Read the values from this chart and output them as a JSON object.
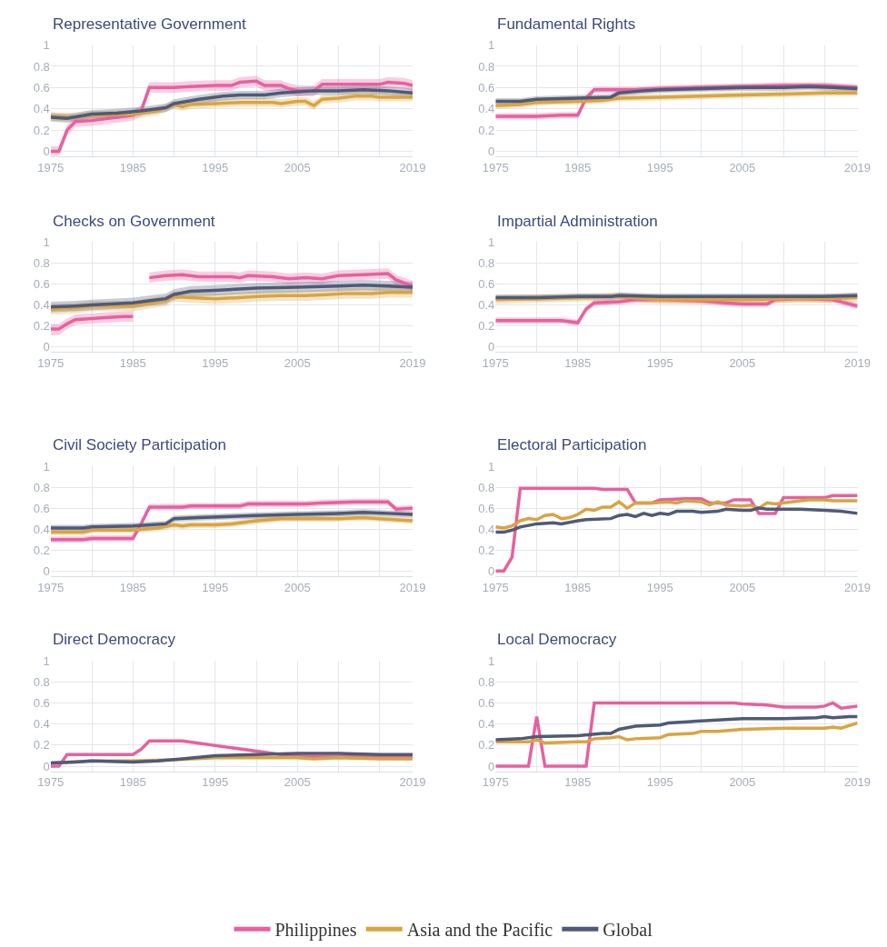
{
  "chart_data": [
    {
      "type": "line",
      "title": "Representative Government",
      "xlim": [
        1975,
        2019
      ],
      "ylim": [
        -0.05,
        1
      ],
      "xticks": [
        1975,
        {
          "value": 1980,
          "label": null
        },
        1985,
        {
          "value": 1990,
          "label": null
        },
        1995,
        {
          "value": 2000,
          "label": null
        },
        2005,
        {
          "value": 2010,
          "label": null
        },
        {
          "value": 2015,
          "label": null
        },
        2019
      ],
      "yticks": [
        0,
        0.2,
        0.4,
        0.6,
        0.8,
        1
      ],
      "grid": true,
      "legend": "bottom",
      "series": [
        {
          "name": "Philippines",
          "color": "#e8609f",
          "x": [
            1975,
            1976,
            1977,
            1978,
            1980,
            1982,
            1985,
            1986,
            1987,
            1990,
            1992,
            1995,
            1997,
            1998,
            2000,
            2001,
            2003,
            2004,
            2005,
            2007,
            2008,
            2011,
            2015,
            2016,
            2018,
            2019
          ],
          "values": [
            0,
            0,
            0.2,
            0.28,
            0.29,
            0.31,
            0.34,
            0.38,
            0.6,
            0.6,
            0.61,
            0.62,
            0.62,
            0.65,
            0.66,
            0.62,
            0.62,
            0.59,
            0.57,
            0.57,
            0.63,
            0.63,
            0.63,
            0.65,
            0.64,
            0.62
          ],
          "lower": [
            -0.04,
            -0.04,
            0.15,
            0.23,
            0.24,
            0.26,
            0.29,
            0.33,
            0.55,
            0.55,
            0.56,
            0.57,
            0.57,
            0.6,
            0.61,
            0.57,
            0.57,
            0.54,
            0.52,
            0.52,
            0.58,
            0.58,
            0.58,
            0.6,
            0.59,
            0.57
          ],
          "upper": [
            0.05,
            0.05,
            0.25,
            0.33,
            0.34,
            0.36,
            0.39,
            0.43,
            0.65,
            0.65,
            0.66,
            0.67,
            0.67,
            0.7,
            0.71,
            0.67,
            0.67,
            0.64,
            0.62,
            0.62,
            0.68,
            0.68,
            0.68,
            0.7,
            0.69,
            0.67
          ]
        },
        {
          "name": "Asia and the Pacific",
          "color": "#d9a441",
          "x": [
            1975,
            1978,
            1980,
            1985,
            1988,
            1990,
            1991,
            1992,
            1995,
            1998,
            2000,
            2002,
            2003,
            2005,
            2006,
            2007,
            2008,
            2010,
            2012,
            2014,
            2015,
            2019
          ],
          "values": [
            0.33,
            0.32,
            0.34,
            0.35,
            0.38,
            0.44,
            0.42,
            0.44,
            0.45,
            0.46,
            0.46,
            0.46,
            0.45,
            0.47,
            0.47,
            0.43,
            0.49,
            0.5,
            0.52,
            0.52,
            0.51,
            0.51
          ],
          "lower": [
            0.29,
            0.28,
            0.3,
            0.31,
            0.34,
            0.4,
            0.38,
            0.4,
            0.41,
            0.42,
            0.42,
            0.42,
            0.41,
            0.43,
            0.43,
            0.39,
            0.45,
            0.46,
            0.48,
            0.48,
            0.47,
            0.47
          ],
          "upper": [
            0.37,
            0.36,
            0.38,
            0.39,
            0.42,
            0.48,
            0.46,
            0.48,
            0.49,
            0.5,
            0.5,
            0.5,
            0.49,
            0.51,
            0.51,
            0.47,
            0.53,
            0.54,
            0.56,
            0.56,
            0.55,
            0.55
          ]
        },
        {
          "name": "Global",
          "color": "#4f5a78",
          "x": [
            1975,
            1977,
            1980,
            1983,
            1986,
            1989,
            1990,
            1993,
            1996,
            1998,
            2001,
            2003,
            2005,
            2007,
            2010,
            2013,
            2016,
            2019
          ],
          "values": [
            0.32,
            0.31,
            0.35,
            0.36,
            0.38,
            0.41,
            0.45,
            0.49,
            0.52,
            0.53,
            0.53,
            0.55,
            0.56,
            0.57,
            0.57,
            0.58,
            0.57,
            0.55
          ],
          "lower": [
            0.28,
            0.27,
            0.31,
            0.32,
            0.34,
            0.37,
            0.41,
            0.45,
            0.48,
            0.49,
            0.49,
            0.51,
            0.52,
            0.53,
            0.53,
            0.54,
            0.53,
            0.51
          ],
          "upper": [
            0.36,
            0.35,
            0.39,
            0.4,
            0.42,
            0.45,
            0.49,
            0.53,
            0.56,
            0.57,
            0.57,
            0.59,
            0.6,
            0.61,
            0.61,
            0.62,
            0.61,
            0.59
          ]
        }
      ]
    },
    {
      "type": "line",
      "title": "Fundamental Rights",
      "xlim": [
        1975,
        2019
      ],
      "ylim": [
        -0.05,
        1
      ],
      "xticks": [
        1975,
        {
          "value": 1980,
          "label": null
        },
        1985,
        {
          "value": 1990,
          "label": null
        },
        1995,
        {
          "value": 2000,
          "label": null
        },
        2005,
        {
          "value": 2010,
          "label": null
        },
        {
          "value": 2015,
          "label": null
        },
        2019
      ],
      "yticks": [
        0,
        0.2,
        0.4,
        0.6,
        0.8,
        1
      ],
      "grid": true,
      "legend": "bottom",
      "series": [
        {
          "name": "Philippines",
          "color": "#e8609f",
          "x": [
            1975,
            1980,
            1983,
            1985,
            1986,
            1987,
            1990,
            1992,
            1995,
            2000,
            2005,
            2010,
            2015,
            2017,
            2019
          ],
          "values": [
            0.33,
            0.33,
            0.34,
            0.34,
            0.5,
            0.58,
            0.58,
            0.58,
            0.59,
            0.6,
            0.61,
            0.62,
            0.62,
            0.61,
            0.6
          ],
          "lower": [
            0.3,
            0.3,
            0.31,
            0.31,
            0.47,
            0.55,
            0.55,
            0.55,
            0.56,
            0.57,
            0.58,
            0.59,
            0.59,
            0.58,
            0.57
          ],
          "upper": [
            0.36,
            0.36,
            0.37,
            0.37,
            0.53,
            0.61,
            0.61,
            0.61,
            0.62,
            0.63,
            0.64,
            0.65,
            0.65,
            0.64,
            0.63
          ]
        },
        {
          "name": "Asia and the Pacific",
          "color": "#d9a441",
          "x": [
            1975,
            1978,
            1980,
            1985,
            1988,
            1990,
            1995,
            2000,
            2005,
            2010,
            2015,
            2019
          ],
          "values": [
            0.43,
            0.44,
            0.46,
            0.47,
            0.48,
            0.5,
            0.51,
            0.52,
            0.53,
            0.54,
            0.55,
            0.55
          ],
          "lower": [
            0.4,
            0.41,
            0.43,
            0.44,
            0.45,
            0.47,
            0.48,
            0.49,
            0.5,
            0.51,
            0.52,
            0.52
          ],
          "upper": [
            0.46,
            0.47,
            0.49,
            0.5,
            0.51,
            0.53,
            0.54,
            0.55,
            0.56,
            0.57,
            0.58,
            0.58
          ]
        },
        {
          "name": "Global",
          "color": "#4f5a78",
          "x": [
            1975,
            1978,
            1980,
            1985,
            1989,
            1990,
            1993,
            1995,
            2000,
            2005,
            2010,
            2013,
            2016,
            2019
          ],
          "values": [
            0.47,
            0.47,
            0.49,
            0.5,
            0.51,
            0.55,
            0.57,
            0.58,
            0.59,
            0.6,
            0.6,
            0.61,
            0.6,
            0.59
          ],
          "lower": [
            0.44,
            0.44,
            0.46,
            0.47,
            0.48,
            0.52,
            0.54,
            0.55,
            0.56,
            0.57,
            0.57,
            0.58,
            0.57,
            0.56
          ],
          "upper": [
            0.5,
            0.5,
            0.52,
            0.53,
            0.54,
            0.58,
            0.6,
            0.61,
            0.62,
            0.63,
            0.63,
            0.64,
            0.63,
            0.62
          ]
        }
      ]
    },
    {
      "type": "line",
      "title": "Checks on Government",
      "xlim": [
        1975,
        2019
      ],
      "ylim": [
        -0.05,
        1
      ],
      "xticks": [
        1975,
        {
          "value": 1980,
          "label": null
        },
        1985,
        {
          "value": 1990,
          "label": null
        },
        1995,
        {
          "value": 2000,
          "label": null
        },
        2005,
        {
          "value": 2010,
          "label": null
        },
        {
          "value": 2015,
          "label": null
        },
        2019
      ],
      "yticks": [
        0,
        0.2,
        0.4,
        0.6,
        0.8,
        1
      ],
      "grid": true,
      "legend": "bottom",
      "series": [
        {
          "name": "Philippines",
          "color": "#e8609f",
          "x": [
            1975,
            1976,
            1977,
            1978,
            1980,
            1982,
            1984,
            1985,
            1986,
            1987,
            1989,
            1991,
            1993,
            1995,
            1997,
            1998,
            1999,
            2002,
            2004,
            2006,
            2008,
            2010,
            2013,
            2016,
            2017,
            2019
          ],
          "values": [
            0.17,
            0.17,
            0.22,
            0.26,
            0.27,
            0.28,
            0.29,
            0.29,
            null,
            0.66,
            0.68,
            0.69,
            0.67,
            0.67,
            0.67,
            0.66,
            0.68,
            0.67,
            0.65,
            0.66,
            0.65,
            0.68,
            0.69,
            0.7,
            0.64,
            0.58
          ],
          "lower": [
            0.11,
            0.11,
            0.17,
            0.21,
            0.22,
            0.23,
            0.24,
            0.24,
            null,
            0.61,
            0.63,
            0.64,
            0.62,
            0.62,
            0.62,
            0.61,
            0.63,
            0.62,
            0.6,
            0.61,
            0.6,
            0.63,
            0.64,
            0.65,
            0.59,
            0.53
          ],
          "upper": [
            0.22,
            0.22,
            0.27,
            0.31,
            0.32,
            0.33,
            0.34,
            0.34,
            null,
            0.71,
            0.73,
            0.74,
            0.72,
            0.72,
            0.72,
            0.71,
            0.73,
            0.72,
            0.7,
            0.71,
            0.7,
            0.73,
            0.74,
            0.75,
            0.69,
            0.63
          ]
        },
        {
          "name": "Asia and the Pacific",
          "color": "#d9a441",
          "x": [
            1975,
            1978,
            1980,
            1985,
            1989,
            1990,
            1992,
            1995,
            1998,
            2000,
            2003,
            2006,
            2009,
            2011,
            2014,
            2016,
            2019
          ],
          "values": [
            0.36,
            0.37,
            0.39,
            0.39,
            0.44,
            0.48,
            0.47,
            0.46,
            0.47,
            0.48,
            0.49,
            0.49,
            0.5,
            0.51,
            0.51,
            0.52,
            0.52
          ],
          "lower": [
            0.31,
            0.32,
            0.34,
            0.34,
            0.39,
            0.43,
            0.42,
            0.41,
            0.42,
            0.43,
            0.44,
            0.44,
            0.45,
            0.46,
            0.46,
            0.47,
            0.47
          ],
          "upper": [
            0.41,
            0.42,
            0.44,
            0.44,
            0.49,
            0.53,
            0.52,
            0.51,
            0.52,
            0.53,
            0.54,
            0.54,
            0.55,
            0.56,
            0.56,
            0.57,
            0.57
          ]
        },
        {
          "name": "Global",
          "color": "#4f5a78",
          "x": [
            1975,
            1978,
            1980,
            1985,
            1988,
            1989,
            1990,
            1992,
            1995,
            2000,
            2005,
            2010,
            2013,
            2016,
            2019
          ],
          "values": [
            0.38,
            0.39,
            0.4,
            0.42,
            0.45,
            0.46,
            0.5,
            0.53,
            0.54,
            0.56,
            0.57,
            0.58,
            0.59,
            0.58,
            0.57
          ],
          "lower": [
            0.33,
            0.34,
            0.35,
            0.37,
            0.4,
            0.41,
            0.45,
            0.48,
            0.49,
            0.51,
            0.52,
            0.53,
            0.54,
            0.53,
            0.52
          ],
          "upper": [
            0.43,
            0.44,
            0.45,
            0.47,
            0.5,
            0.51,
            0.55,
            0.58,
            0.59,
            0.61,
            0.62,
            0.63,
            0.64,
            0.63,
            0.62
          ]
        }
      ]
    },
    {
      "type": "line",
      "title": "Impartial Administration",
      "xlim": [
        1975,
        2019
      ],
      "ylim": [
        -0.05,
        1
      ],
      "xticks": [
        1975,
        {
          "value": 1980,
          "label": null
        },
        1985,
        {
          "value": 1990,
          "label": null
        },
        1995,
        {
          "value": 2000,
          "label": null
        },
        2005,
        {
          "value": 2010,
          "label": null
        },
        {
          "value": 2015,
          "label": null
        },
        2019
      ],
      "yticks": [
        0,
        0.2,
        0.4,
        0.6,
        0.8,
        1
      ],
      "grid": true,
      "legend": "bottom",
      "series": [
        {
          "name": "Philippines",
          "color": "#e8609f",
          "x": [
            1975,
            1980,
            1983,
            1985,
            1986,
            1987,
            1990,
            1992,
            1995,
            2000,
            2003,
            2005,
            2008,
            2009,
            2012,
            2016,
            2017,
            2019
          ],
          "values": [
            0.25,
            0.25,
            0.25,
            0.23,
            0.36,
            0.42,
            0.43,
            0.45,
            0.45,
            0.44,
            0.42,
            0.41,
            0.41,
            0.45,
            0.46,
            0.45,
            0.43,
            0.39
          ],
          "lower": [
            0.22,
            0.22,
            0.22,
            0.2,
            0.33,
            0.39,
            0.4,
            0.42,
            0.42,
            0.41,
            0.39,
            0.38,
            0.38,
            0.42,
            0.43,
            0.42,
            0.4,
            0.36
          ],
          "upper": [
            0.28,
            0.28,
            0.28,
            0.26,
            0.39,
            0.45,
            0.46,
            0.48,
            0.48,
            0.47,
            0.45,
            0.44,
            0.44,
            0.48,
            0.49,
            0.48,
            0.46,
            0.42
          ]
        },
        {
          "name": "Asia and the Pacific",
          "color": "#d9a441",
          "x": [
            1975,
            1980,
            1985,
            1990,
            1995,
            2000,
            2005,
            2010,
            2015,
            2019
          ],
          "values": [
            0.45,
            0.46,
            0.47,
            0.48,
            0.45,
            0.45,
            0.45,
            0.46,
            0.46,
            0.47
          ],
          "lower": [
            0.41,
            0.42,
            0.43,
            0.44,
            0.41,
            0.41,
            0.41,
            0.42,
            0.42,
            0.43
          ],
          "upper": [
            0.49,
            0.5,
            0.51,
            0.52,
            0.49,
            0.49,
            0.49,
            0.5,
            0.5,
            0.51
          ]
        },
        {
          "name": "Global",
          "color": "#4f5a78",
          "x": [
            1975,
            1980,
            1985,
            1989,
            1990,
            1995,
            2000,
            2005,
            2010,
            2015,
            2019
          ],
          "values": [
            0.47,
            0.47,
            0.48,
            0.48,
            0.49,
            0.48,
            0.48,
            0.48,
            0.48,
            0.48,
            0.49
          ],
          "lower": [
            0.44,
            0.44,
            0.45,
            0.45,
            0.46,
            0.45,
            0.45,
            0.45,
            0.45,
            0.45,
            0.46
          ],
          "upper": [
            0.5,
            0.5,
            0.51,
            0.51,
            0.52,
            0.51,
            0.51,
            0.51,
            0.51,
            0.51,
            0.52
          ]
        }
      ]
    },
    {
      "type": "line",
      "title": "Civil Society Participation",
      "xlim": [
        1975,
        2019
      ],
      "ylim": [
        -0.05,
        1
      ],
      "xticks": [
        1975,
        {
          "value": 1980,
          "label": null
        },
        1985,
        {
          "value": 1990,
          "label": null
        },
        1995,
        {
          "value": 2000,
          "label": null
        },
        2005,
        {
          "value": 2010,
          "label": null
        },
        {
          "value": 2015,
          "label": null
        },
        2019
      ],
      "yticks": [
        0,
        0.2,
        0.4,
        0.6,
        0.8,
        1
      ],
      "grid": true,
      "legend": "bottom",
      "series": [
        {
          "name": "Philippines",
          "color": "#e8609f",
          "x": [
            1975,
            1979,
            1980,
            1985,
            1986,
            1987,
            1991,
            1992,
            1998,
            1999,
            2006,
            2008,
            2012,
            2016,
            2017,
            2019
          ],
          "values": [
            0.3,
            0.3,
            0.31,
            0.31,
            0.45,
            0.61,
            0.61,
            0.62,
            0.62,
            0.64,
            0.64,
            0.65,
            0.66,
            0.66,
            0.59,
            0.6
          ],
          "lower": [
            0.27,
            0.27,
            0.28,
            0.28,
            0.42,
            0.58,
            0.58,
            0.59,
            0.59,
            0.61,
            0.61,
            0.62,
            0.63,
            0.63,
            0.56,
            0.57
          ],
          "upper": [
            0.33,
            0.33,
            0.34,
            0.34,
            0.48,
            0.64,
            0.64,
            0.65,
            0.65,
            0.67,
            0.67,
            0.68,
            0.69,
            0.69,
            0.62,
            0.63
          ]
        },
        {
          "name": "Asia and the Pacific",
          "color": "#d9a441",
          "x": [
            1975,
            1979,
            1980,
            1985,
            1988,
            1990,
            1991,
            1992,
            1995,
            1997,
            2000,
            2003,
            2010,
            2013,
            2015,
            2019
          ],
          "values": [
            0.37,
            0.37,
            0.39,
            0.39,
            0.41,
            0.44,
            0.43,
            0.44,
            0.44,
            0.45,
            0.48,
            0.5,
            0.5,
            0.51,
            0.5,
            0.48
          ],
          "lower": [
            0.34,
            0.34,
            0.36,
            0.36,
            0.38,
            0.41,
            0.4,
            0.41,
            0.41,
            0.42,
            0.45,
            0.47,
            0.47,
            0.48,
            0.47,
            0.45
          ],
          "upper": [
            0.4,
            0.4,
            0.42,
            0.42,
            0.44,
            0.47,
            0.46,
            0.47,
            0.47,
            0.48,
            0.51,
            0.53,
            0.53,
            0.54,
            0.53,
            0.51
          ]
        },
        {
          "name": "Global",
          "color": "#4f5a78",
          "x": [
            1975,
            1979,
            1980,
            1985,
            1989,
            1990,
            1993,
            2000,
            2005,
            2010,
            2013,
            2016,
            2019
          ],
          "values": [
            0.41,
            0.41,
            0.42,
            0.43,
            0.45,
            0.5,
            0.51,
            0.53,
            0.54,
            0.55,
            0.56,
            0.55,
            0.54
          ],
          "lower": [
            0.38,
            0.38,
            0.39,
            0.4,
            0.42,
            0.47,
            0.48,
            0.5,
            0.51,
            0.52,
            0.53,
            0.52,
            0.51
          ],
          "upper": [
            0.44,
            0.44,
            0.45,
            0.46,
            0.48,
            0.53,
            0.54,
            0.56,
            0.57,
            0.58,
            0.59,
            0.58,
            0.57
          ]
        }
      ]
    },
    {
      "type": "line",
      "title": "Electoral Participation",
      "xlim": [
        1975,
        2019
      ],
      "ylim": [
        -0.05,
        1
      ],
      "xticks": [
        1975,
        {
          "value": 1980,
          "label": null
        },
        1985,
        {
          "value": 1990,
          "label": null
        },
        1995,
        {
          "value": 2000,
          "label": null
        },
        2005,
        {
          "value": 2010,
          "label": null
        },
        {
          "value": 2015,
          "label": null
        },
        2019
      ],
      "yticks": [
        0,
        0.2,
        0.4,
        0.6,
        0.8,
        1
      ],
      "grid": true,
      "legend": "bottom",
      "series": [
        {
          "name": "Philippines",
          "color": "#e8609f",
          "x": [
            1975,
            1976,
            1977,
            1978,
            1987,
            1988,
            1991,
            1992,
            1994,
            1995,
            1998,
            2000,
            2001,
            2003,
            2004,
            2006,
            2007,
            2009,
            2010,
            2015,
            2016,
            2019
          ],
          "values": [
            0,
            0,
            0.13,
            0.79,
            0.79,
            0.78,
            0.78,
            0.65,
            0.65,
            0.68,
            0.69,
            0.69,
            0.65,
            0.65,
            0.68,
            0.68,
            0.55,
            0.55,
            0.7,
            0.7,
            0.72,
            0.72
          ]
        },
        {
          "name": "Asia and the Pacific",
          "color": "#d9a441",
          "x": [
            1975,
            1976,
            1977,
            1978,
            1979,
            1980,
            1981,
            1982,
            1983,
            1984,
            1985,
            1986,
            1987,
            1988,
            1989,
            1990,
            1991,
            1992,
            1994,
            1996,
            1997,
            1998,
            2000,
            2001,
            2002,
            2003,
            2005,
            2006,
            2007,
            2008,
            2009,
            2011,
            2013,
            2015,
            2016,
            2019
          ],
          "values": [
            0.42,
            0.41,
            0.43,
            0.48,
            0.5,
            0.49,
            0.53,
            0.54,
            0.5,
            0.51,
            0.54,
            0.59,
            0.58,
            0.61,
            0.61,
            0.66,
            0.6,
            0.65,
            0.65,
            0.66,
            0.65,
            0.67,
            0.66,
            0.63,
            0.66,
            0.63,
            0.62,
            0.63,
            0.6,
            0.65,
            0.64,
            0.66,
            0.68,
            0.68,
            0.67,
            0.67
          ]
        },
        {
          "name": "Global",
          "color": "#4f5a78",
          "x": [
            1975,
            1976,
            1977,
            1978,
            1980,
            1982,
            1983,
            1985,
            1986,
            1989,
            1990,
            1991,
            1992,
            1993,
            1994,
            1995,
            1996,
            1997,
            1999,
            2000,
            2002,
            2003,
            2005,
            2006,
            2007,
            2008,
            2010,
            2012,
            2015,
            2017,
            2019
          ],
          "values": [
            0.37,
            0.37,
            0.39,
            0.42,
            0.45,
            0.46,
            0.45,
            0.48,
            0.49,
            0.5,
            0.53,
            0.54,
            0.52,
            0.55,
            0.53,
            0.55,
            0.54,
            0.57,
            0.57,
            0.56,
            0.57,
            0.59,
            0.58,
            0.58,
            0.6,
            0.59,
            0.59,
            0.59,
            0.58,
            0.57,
            0.55
          ]
        }
      ]
    },
    {
      "type": "line",
      "title": "Direct Democracy",
      "xlim": [
        1975,
        2019
      ],
      "ylim": [
        -0.05,
        1
      ],
      "xticks": [
        1975,
        {
          "value": 1980,
          "label": null
        },
        1985,
        {
          "value": 1990,
          "label": null
        },
        1995,
        {
          "value": 2000,
          "label": null
        },
        2005,
        {
          "value": 2010,
          "label": null
        },
        {
          "value": 2015,
          "label": null
        },
        2019
      ],
      "yticks": [
        0,
        0.2,
        0.4,
        0.6,
        0.8,
        1
      ],
      "grid": true,
      "legend": "bottom",
      "series": [
        {
          "name": "Philippines",
          "color": "#e8609f",
          "x": [
            1975,
            1976,
            1977,
            1985,
            1986,
            1987,
            1991,
            2003,
            2006,
            2019
          ],
          "values": [
            0,
            0,
            0.11,
            0.11,
            0.16,
            0.24,
            0.24,
            0.11,
            0.09,
            0.09
          ]
        },
        {
          "name": "Asia and the Pacific",
          "color": "#d9a441",
          "x": [
            1975,
            1980,
            1985,
            1990,
            1995,
            2000,
            2005,
            2007,
            2010,
            2015,
            2019
          ],
          "values": [
            0.03,
            0.05,
            0.05,
            0.06,
            0.08,
            0.08,
            0.08,
            0.07,
            0.08,
            0.07,
            0.07
          ]
        },
        {
          "name": "Global",
          "color": "#4f5a78",
          "x": [
            1975,
            1978,
            1980,
            1985,
            1988,
            1991,
            1995,
            2000,
            2005,
            2010,
            2015,
            2019
          ],
          "values": [
            0.03,
            0.04,
            0.05,
            0.04,
            0.05,
            0.07,
            0.1,
            0.11,
            0.12,
            0.12,
            0.11,
            0.11
          ]
        }
      ]
    },
    {
      "type": "line",
      "title": "Local Democracy",
      "xlim": [
        1975,
        2019
      ],
      "ylim": [
        -0.05,
        1
      ],
      "xticks": [
        1975,
        {
          "value": 1980,
          "label": null
        },
        1985,
        {
          "value": 1990,
          "label": null
        },
        1995,
        {
          "value": 2000,
          "label": null
        },
        2005,
        {
          "value": 2010,
          "label": null
        },
        {
          "value": 2015,
          "label": null
        },
        2019
      ],
      "yticks": [
        0,
        0.2,
        0.4,
        0.6,
        0.8,
        1
      ],
      "grid": true,
      "legend": "bottom",
      "series": [
        {
          "name": "Philippines",
          "color": "#e8609f",
          "x": [
            1975,
            1979,
            1980,
            1981,
            1986,
            1987,
            1995,
            2004,
            2005,
            2008,
            2010,
            2014,
            2015,
            2016,
            2017,
            2019
          ],
          "values": [
            0,
            0,
            0.47,
            0,
            0,
            0.6,
            0.6,
            0.6,
            0.59,
            0.58,
            0.56,
            0.56,
            0.57,
            0.6,
            0.55,
            0.57
          ]
        },
        {
          "name": "Asia and the Pacific",
          "color": "#d9a441",
          "x": [
            1975,
            1979,
            1980,
            1981,
            1985,
            1986,
            1987,
            1989,
            1990,
            1991,
            1992,
            1995,
            1996,
            1999,
            2000,
            2002,
            2005,
            2010,
            2015,
            2016,
            2017,
            2019
          ],
          "values": [
            0.23,
            0.23,
            0.25,
            0.22,
            0.23,
            0.23,
            0.26,
            0.27,
            0.28,
            0.25,
            0.26,
            0.27,
            0.3,
            0.31,
            0.33,
            0.33,
            0.35,
            0.36,
            0.36,
            0.37,
            0.36,
            0.41
          ]
        },
        {
          "name": "Global",
          "color": "#4f5a78",
          "x": [
            1975,
            1978,
            1980,
            1985,
            1988,
            1989,
            1990,
            1992,
            1995,
            1996,
            2000,
            2005,
            2010,
            2014,
            2015,
            2016,
            2018,
            2019
          ],
          "values": [
            0.25,
            0.26,
            0.28,
            0.29,
            0.31,
            0.31,
            0.35,
            0.38,
            0.39,
            0.41,
            0.43,
            0.45,
            0.45,
            0.46,
            0.47,
            0.46,
            0.47,
            0.47
          ]
        }
      ]
    }
  ]
}
